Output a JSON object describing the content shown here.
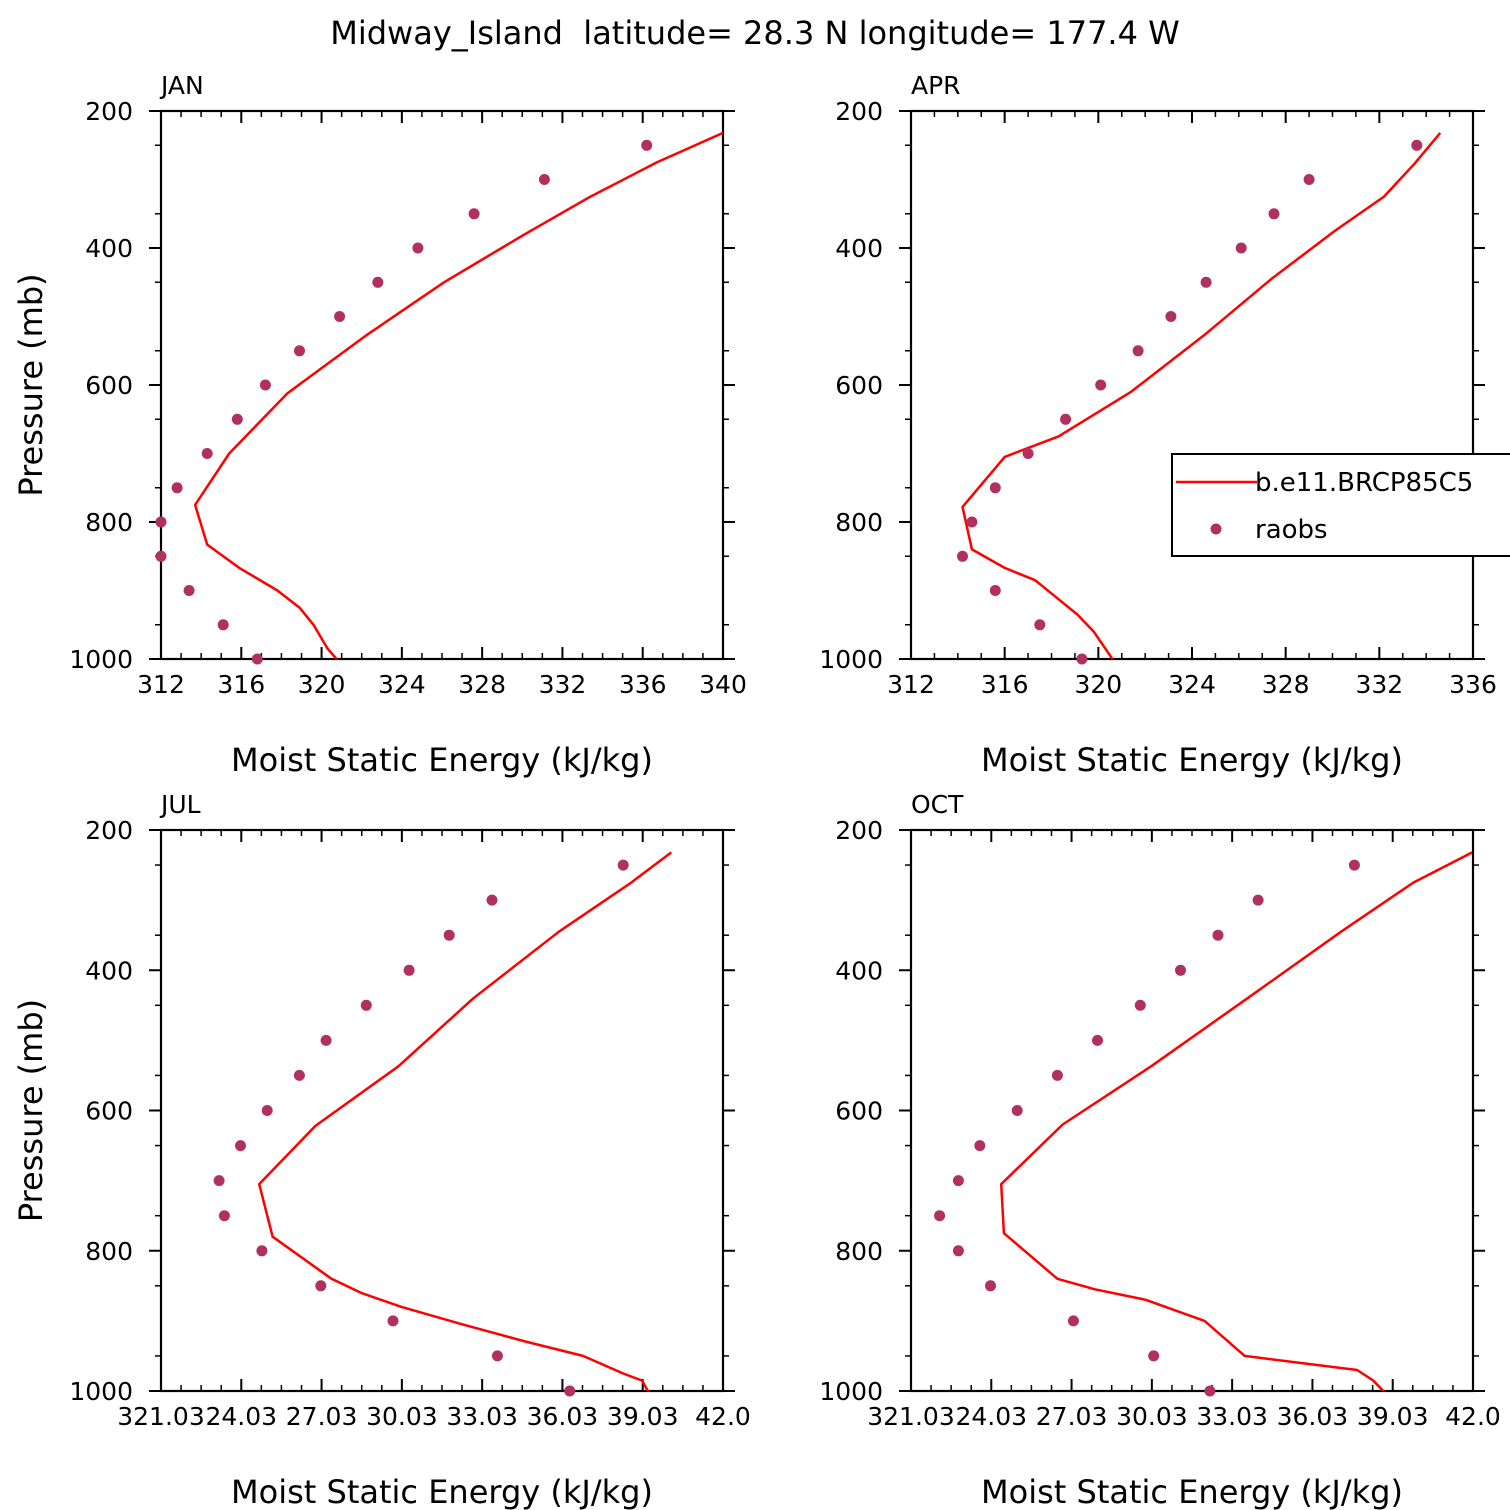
{
  "title": "Midway_Island  latitude= 28.3 N longitude= 177.4 W",
  "colors": {
    "model_line": "#ff0000",
    "obs_marker": "#b03060",
    "axes": "#000000"
  },
  "legend": {
    "location": "right side of APR panel",
    "entries": [
      "b.e11.BRCP85C5",
      "raobs"
    ]
  },
  "chart_data": [
    {
      "type": "line",
      "panel": "JAN",
      "xlabel": "Moist Static Energy (kJ/kg)",
      "ylabel": "Pressure (mb)",
      "xlim": [
        312,
        340
      ],
      "ylim": [
        1000,
        200
      ],
      "y_reversed": true,
      "xticks": [
        "312",
        "316",
        "320",
        "324",
        "328",
        "332",
        "336",
        "340"
      ],
      "yticks": [
        "200",
        "400",
        "600",
        "800",
        "1000"
      ],
      "series": [
        {
          "name": "b.e11.BRCP85C5",
          "style": "line",
          "x": [
            320.9,
            320.3,
            319.6,
            318.9,
            317.8,
            315.9,
            314.3,
            313.7,
            315.4,
            318.3,
            322.2,
            326.1,
            330.0,
            333.4,
            336.7,
            340.0
          ],
          "y": [
            1005,
            985,
            950,
            925,
            900,
            867,
            833,
            775,
            700,
            612,
            528,
            450,
            382,
            325,
            275,
            232
          ]
        },
        {
          "name": "raobs",
          "style": "markers",
          "x": [
            316.8,
            315.1,
            313.4,
            312.0,
            312.0,
            312.8,
            314.3,
            315.8,
            317.2,
            318.9,
            320.9,
            322.8,
            324.8,
            327.6,
            331.1,
            336.2
          ],
          "y": [
            1000,
            950,
            900,
            850,
            800,
            750,
            700,
            650,
            600,
            550,
            500,
            450,
            400,
            350,
            300,
            250
          ]
        }
      ]
    },
    {
      "type": "line",
      "panel": "APR",
      "xlabel": "Moist Static Energy (kJ/kg)",
      "ylabel": "",
      "xlim": [
        312,
        336
      ],
      "ylim": [
        1000,
        200
      ],
      "y_reversed": true,
      "xticks": [
        "312",
        "316",
        "320",
        "324",
        "328",
        "332",
        "336"
      ],
      "yticks": [
        "200",
        "400",
        "600",
        "800",
        "1000"
      ],
      "series": [
        {
          "name": "b.e11.BRCP85C5",
          "style": "line",
          "x": [
            320.7,
            320.3,
            319.8,
            319.1,
            318.2,
            317.3,
            316.0,
            314.6,
            314.2,
            316.0,
            318.3,
            321.4,
            324.6,
            327.4,
            330.1,
            332.2,
            333.5,
            334.6
          ],
          "y": [
            1005,
            985,
            960,
            935,
            910,
            885,
            867,
            840,
            778,
            705,
            675,
            610,
            525,
            445,
            375,
            325,
            277,
            232
          ]
        },
        {
          "name": "raobs",
          "style": "markers",
          "x": [
            319.3,
            317.5,
            315.6,
            314.2,
            314.6,
            315.6,
            317.0,
            318.6,
            320.1,
            321.7,
            323.1,
            324.6,
            326.1,
            327.5,
            329.0,
            333.6
          ],
          "y": [
            1000,
            950,
            900,
            850,
            800,
            750,
            700,
            650,
            600,
            550,
            500,
            450,
            400,
            350,
            300,
            250
          ]
        }
      ]
    },
    {
      "type": "line",
      "panel": "JUL",
      "xlabel": "Moist Static Energy (kJ/kg)",
      "ylabel": "Pressure (mb)",
      "xlim": [
        321.03,
        342.03
      ],
      "ylim": [
        1000,
        200
      ],
      "y_reversed": true,
      "xticks": [
        "321.03",
        "24.03",
        "27.03",
        "30.03",
        "33.03",
        "36.03",
        "39.03",
        "42.0"
      ],
      "yticks": [
        "200",
        "400",
        "600",
        "800",
        "1000"
      ],
      "series": [
        {
          "name": "b.e11.BRCP85C5",
          "style": "line",
          "x": [
            339.3,
            339.0,
            338.3,
            336.8,
            334.7,
            332.3,
            330.0,
            328.5,
            327.4,
            325.2,
            324.7,
            326.8,
            329.9,
            332.7,
            335.9,
            338.6,
            340.1
          ],
          "y": [
            1005,
            985,
            975,
            950,
            930,
            905,
            880,
            860,
            840,
            780,
            705,
            622,
            537,
            440,
            345,
            275,
            232
          ]
        },
        {
          "name": "raobs",
          "style": "markers",
          "x": [
            336.3,
            333.6,
            329.7,
            327.0,
            324.8,
            323.4,
            323.2,
            324.0,
            325.0,
            326.2,
            327.2,
            328.7,
            330.3,
            331.8,
            333.4,
            338.3
          ],
          "y": [
            1000,
            950,
            900,
            850,
            800,
            750,
            700,
            650,
            600,
            550,
            500,
            450,
            400,
            350,
            300,
            250
          ]
        }
      ]
    },
    {
      "type": "line",
      "panel": "OCT",
      "xlabel": "Moist Static Energy (kJ/kg)",
      "ylabel": "",
      "xlim": [
        321.03,
        342.03
      ],
      "ylim": [
        1000,
        200
      ],
      "y_reversed": true,
      "xticks": [
        "321.03",
        "24.03",
        "27.03",
        "30.03",
        "33.03",
        "36.03",
        "39.03",
        "42.0"
      ],
      "yticks": [
        "200",
        "400",
        "600",
        "800",
        "1000"
      ],
      "series": [
        {
          "name": "b.e11.BRCP85C5",
          "style": "line",
          "x": [
            338.8,
            338.3,
            337.7,
            333.5,
            332.0,
            329.8,
            327.9,
            326.5,
            324.5,
            324.4,
            326.7,
            330.0,
            333.6,
            337.1,
            339.8,
            342.0
          ],
          "y": [
            1005,
            985,
            970,
            950,
            900,
            870,
            855,
            840,
            775,
            705,
            620,
            537,
            440,
            345,
            275,
            232
          ]
        },
        {
          "name": "raobs",
          "style": "markers",
          "x": [
            332.2,
            330.1,
            327.1,
            324.0,
            322.8,
            322.1,
            322.8,
            323.6,
            325.0,
            326.5,
            328.0,
            329.6,
            331.1,
            332.5,
            334.0,
            337.6
          ],
          "y": [
            1000,
            950,
            900,
            850,
            800,
            750,
            700,
            650,
            600,
            550,
            500,
            450,
            400,
            350,
            300,
            250
          ]
        }
      ]
    }
  ]
}
